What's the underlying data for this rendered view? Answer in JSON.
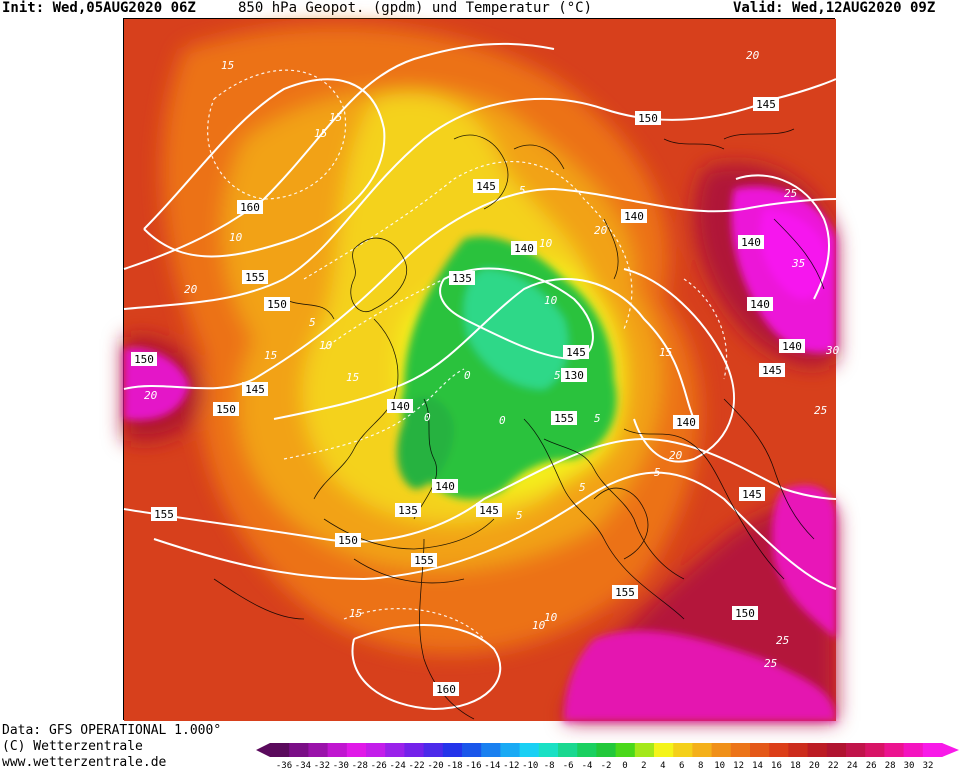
{
  "header": {
    "init": "Init: Wed,05AUG2020 06Z",
    "title": "850 hPa Geopot. (gpdm) und Temperatur (°C)",
    "valid": "Valid: Wed,12AUG2020 09Z"
  },
  "footer": {
    "data_source": "Data: GFS OPERATIONAL 1.000°",
    "copyright": "(C) Wetterzentrale",
    "website": "www.wetterzentrale.de"
  },
  "colors": {
    "background_warm": "#d9441e",
    "orange": "#f08a10",
    "yellow": "#f4e21c",
    "green": "#28c040",
    "teal": "#2ed88a",
    "magenta": "#f014e0",
    "deep_red": "#b0142a",
    "contour": "#ffffff",
    "coast": "#000000"
  },
  "legend": {
    "ticks": [
      "-36",
      "-34",
      "-32",
      "-30",
      "-28",
      "-26",
      "-24",
      "-22",
      "-20",
      "-18",
      "-16",
      "-14",
      "-12",
      "-10",
      "-8",
      "-6",
      "-4",
      "-2",
      "0",
      "2",
      "4",
      "6",
      "8",
      "10",
      "12",
      "14",
      "16",
      "18",
      "20",
      "22",
      "24",
      "26",
      "28",
      "30",
      "32"
    ],
    "swatches": [
      "#5a0a5c",
      "#7a0e86",
      "#9a12aa",
      "#c016d0",
      "#e01ae8",
      "#c31eea",
      "#9a22ea",
      "#7422ea",
      "#4c2aea",
      "#2434ea",
      "#1a56ea",
      "#1a80f0",
      "#1aaaf4",
      "#1ad0f4",
      "#1ae0c4",
      "#1ad890",
      "#1ad060",
      "#22c83a",
      "#4ad81a",
      "#a4e81a",
      "#f4f41a",
      "#f4d01a",
      "#f4b01a",
      "#f09018",
      "#ec7418",
      "#e45818",
      "#dc3e18",
      "#cc2c1c",
      "#bc1c24",
      "#b01430",
      "#c0144a",
      "#d81466",
      "#ec1490",
      "#f414c0",
      "#f81ae8"
    ]
  },
  "geopotential_labels": [
    {
      "text": "160",
      "id": "g160a"
    },
    {
      "text": "155",
      "id": "g155a"
    },
    {
      "text": "150",
      "id": "g150a"
    },
    {
      "text": "150",
      "id": "g150b"
    },
    {
      "text": "145",
      "id": "g145a"
    },
    {
      "text": "150",
      "id": "g150c"
    },
    {
      "text": "155",
      "id": "g155b"
    },
    {
      "text": "150",
      "id": "g150d"
    },
    {
      "text": "155",
      "id": "g155c"
    },
    {
      "text": "135",
      "id": "g135a"
    },
    {
      "text": "145",
      "id": "g145b"
    },
    {
      "text": "140",
      "id": "g140a"
    },
    {
      "text": "140",
      "id": "g140b"
    },
    {
      "text": "135",
      "id": "g135b"
    },
    {
      "text": "145",
      "id": "g145c"
    },
    {
      "text": "140",
      "id": "g140c"
    },
    {
      "text": "145",
      "id": "g145d"
    },
    {
      "text": "130",
      "id": "g130"
    },
    {
      "text": "155",
      "id": "g155d"
    },
    {
      "text": "140",
      "id": "g140d"
    },
    {
      "text": "150",
      "id": "g150e"
    },
    {
      "text": "145",
      "id": "g145e"
    },
    {
      "text": "140",
      "id": "g140e"
    },
    {
      "text": "140",
      "id": "g140f"
    },
    {
      "text": "140",
      "id": "g140g"
    },
    {
      "text": "145",
      "id": "g145f"
    },
    {
      "text": "140",
      "id": "g140h"
    },
    {
      "text": "145",
      "id": "g145g"
    },
    {
      "text": "155",
      "id": "g155e"
    },
    {
      "text": "150",
      "id": "g150f"
    },
    {
      "text": "160",
      "id": "g160b"
    }
  ],
  "temperature_labels": [
    "15",
    "15",
    "10",
    "20",
    "15",
    "10",
    "5",
    "20",
    "5",
    "0",
    "5",
    "10",
    "15",
    "20",
    "25",
    "30",
    "35",
    "20",
    "25",
    "20",
    "25",
    "15",
    "10",
    "5",
    "0",
    "5",
    "15",
    "10",
    "5",
    "15",
    "25",
    "10",
    "0",
    "5"
  ]
}
